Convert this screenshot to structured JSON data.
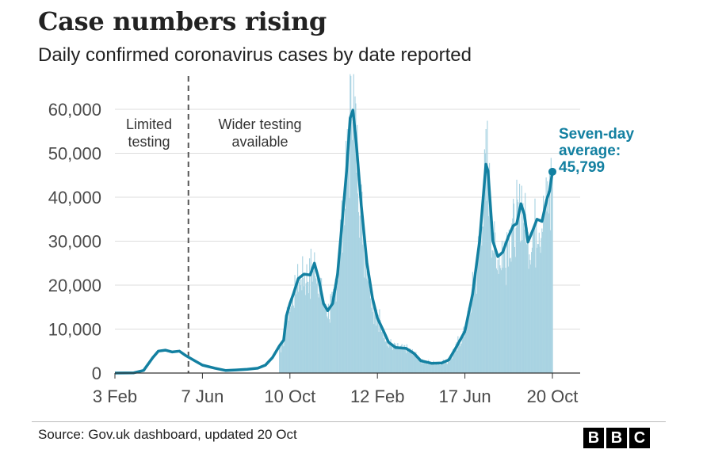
{
  "header": {
    "title": "Case numbers rising",
    "subtitle": "Daily confirmed coronavirus cases by date reported"
  },
  "footer": {
    "source": "Source: Gov.uk dashboard, updated 20 Oct",
    "logo_letters": [
      "B",
      "B",
      "C"
    ]
  },
  "colors": {
    "average_line": "#1380A1",
    "daily_bars": "#A9D3E2",
    "gridlines": "#dddddd",
    "axis_text": "#4a4a4a",
    "divider": "#555555"
  },
  "chart_data": {
    "type": "area",
    "title": "Case numbers rising",
    "subtitle": "Daily confirmed coronavirus cases by date reported",
    "x_axis": {
      "type": "date",
      "range": [
        "2020-02-03",
        "2021-10-20"
      ],
      "tick_labels": [
        "3 Feb",
        "7 Jun",
        "10 Oct",
        "12 Feb",
        "17 Jun",
        "20 Oct"
      ],
      "tick_dates": [
        "2020-02-03",
        "2020-06-07",
        "2020-10-10",
        "2021-02-12",
        "2021-06-17",
        "2021-10-20"
      ]
    },
    "y_axis": {
      "range": [
        0,
        60000
      ],
      "tick_values": [
        0,
        10000,
        20000,
        30000,
        40000,
        50000,
        60000
      ],
      "tick_labels": [
        "0",
        "10,000",
        "20,000",
        "30,000",
        "40,000",
        "50,000",
        "60,000"
      ]
    },
    "grid": "horizontal",
    "annotations": {
      "divider": {
        "date": "2020-05-18",
        "style": "dashed"
      },
      "left_label": [
        "Limited",
        "testing"
      ],
      "right_label": [
        "Wider testing",
        "available"
      ],
      "callout": {
        "lines": [
          "Seven-day",
          "average:",
          "45,799"
        ],
        "date": "2021-10-20",
        "value": 45799
      }
    },
    "series": [
      {
        "name": "Seven-day average",
        "style": "line",
        "points": [
          [
            "2020-02-03",
            0
          ],
          [
            "2020-03-01",
            50
          ],
          [
            "2020-03-15",
            600
          ],
          [
            "2020-03-28",
            3500
          ],
          [
            "2020-04-05",
            5000
          ],
          [
            "2020-04-15",
            5200
          ],
          [
            "2020-04-25",
            4800
          ],
          [
            "2020-05-05",
            5000
          ],
          [
            "2020-05-15",
            3900
          ],
          [
            "2020-05-28",
            2700
          ],
          [
            "2020-06-07",
            1800
          ],
          [
            "2020-06-25",
            1100
          ],
          [
            "2020-07-10",
            600
          ],
          [
            "2020-07-25",
            700
          ],
          [
            "2020-08-10",
            850
          ],
          [
            "2020-08-25",
            1100
          ],
          [
            "2020-09-05",
            1800
          ],
          [
            "2020-09-15",
            3500
          ],
          [
            "2020-09-25",
            6200
          ],
          [
            "2020-10-01",
            7500
          ],
          [
            "2020-10-05",
            13000
          ],
          [
            "2020-10-10",
            15800
          ],
          [
            "2020-10-15",
            18000
          ],
          [
            "2020-10-22",
            21500
          ],
          [
            "2020-10-30",
            22500
          ],
          [
            "2020-11-08",
            22300
          ],
          [
            "2020-11-14",
            25000
          ],
          [
            "2020-11-20",
            21500
          ],
          [
            "2020-11-27",
            15800
          ],
          [
            "2020-12-03",
            14200
          ],
          [
            "2020-12-10",
            15800
          ],
          [
            "2020-12-17",
            22500
          ],
          [
            "2020-12-24",
            35000
          ],
          [
            "2020-12-30",
            46000
          ],
          [
            "2021-01-04",
            58000
          ],
          [
            "2021-01-08",
            59800
          ],
          [
            "2021-01-13",
            52000
          ],
          [
            "2021-01-20",
            38000
          ],
          [
            "2021-01-28",
            25000
          ],
          [
            "2021-02-05",
            17000
          ],
          [
            "2021-02-12",
            12500
          ],
          [
            "2021-02-20",
            9800
          ],
          [
            "2021-02-28",
            7000
          ],
          [
            "2021-03-10",
            5800
          ],
          [
            "2021-03-25",
            5600
          ],
          [
            "2021-04-05",
            4500
          ],
          [
            "2021-04-15",
            2800
          ],
          [
            "2021-05-01",
            2200
          ],
          [
            "2021-05-15",
            2300
          ],
          [
            "2021-05-25",
            3000
          ],
          [
            "2021-06-05",
            6000
          ],
          [
            "2021-06-17",
            9500
          ],
          [
            "2021-06-28",
            18000
          ],
          [
            "2021-07-08",
            30000
          ],
          [
            "2021-07-17",
            47500
          ],
          [
            "2021-07-20",
            46000
          ],
          [
            "2021-07-27",
            30000
          ],
          [
            "2021-08-03",
            26500
          ],
          [
            "2021-08-10",
            27500
          ],
          [
            "2021-08-18",
            31000
          ],
          [
            "2021-08-25",
            33500
          ],
          [
            "2021-08-30",
            34000
          ],
          [
            "2021-09-05",
            38500
          ],
          [
            "2021-09-10",
            36000
          ],
          [
            "2021-09-15",
            29800
          ],
          [
            "2021-09-22",
            32500
          ],
          [
            "2021-09-28",
            35000
          ],
          [
            "2021-10-05",
            34500
          ],
          [
            "2021-10-12",
            39500
          ],
          [
            "2021-10-16",
            41500
          ],
          [
            "2021-10-20",
            45799
          ]
        ]
      },
      {
        "name": "Daily confirmed cases",
        "style": "bars",
        "note": "daily values approximated around the seven-day average, peaking near 68,000 in early January 2021"
      }
    ]
  }
}
